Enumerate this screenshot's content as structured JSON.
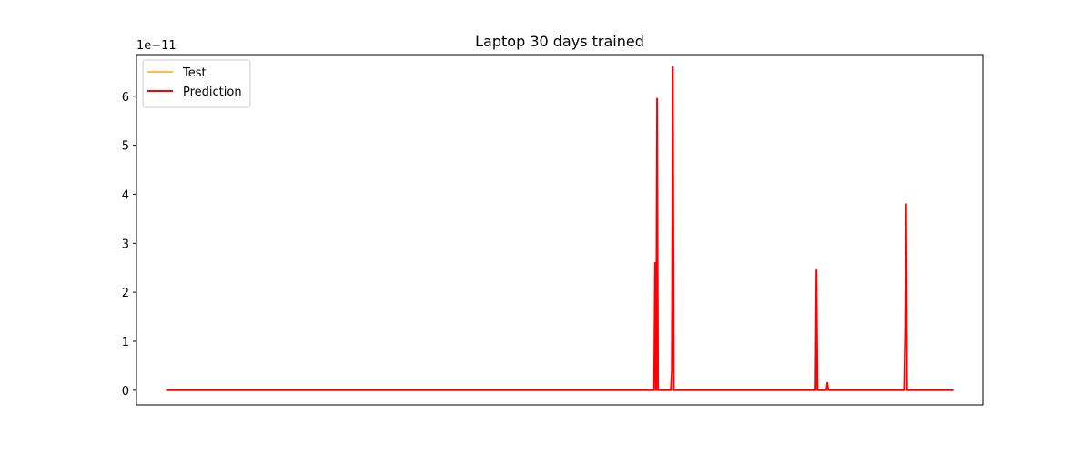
{
  "chart_data": {
    "type": "line",
    "title": "Laptop 30 days trained",
    "xlabel": "",
    "ylabel": "",
    "y_scale_label": "1e−11",
    "x_ticks_visible": false,
    "xlim": [
      -30,
      830
    ],
    "ylim": [
      -0.3,
      6.85
    ],
    "yticks": [
      0,
      1,
      2,
      3,
      4,
      5,
      6
    ],
    "y_tick_labels": [
      "0",
      "1",
      "2",
      "3",
      "4",
      "5",
      "6"
    ],
    "grid": false,
    "legend_position": "top-left",
    "series": [
      {
        "name": "Test",
        "color": "#ffa500",
        "x": [
          0,
          800
        ],
        "y": [
          0,
          0
        ]
      },
      {
        "name": "Prediction",
        "color": "#ff0000",
        "x": [
          0,
          496,
          497,
          498,
          499,
          500,
          501,
          502,
          513,
          514,
          515,
          516,
          660,
          661,
          662,
          671,
          672,
          673,
          750,
          751,
          752,
          753,
          800
        ],
        "y": [
          0,
          0,
          2.6,
          0,
          5.95,
          0,
          0,
          0,
          0,
          0.4,
          6.6,
          0,
          0,
          2.45,
          0,
          0,
          0.15,
          0,
          0,
          1.2,
          3.8,
          0,
          0
        ]
      }
    ]
  }
}
